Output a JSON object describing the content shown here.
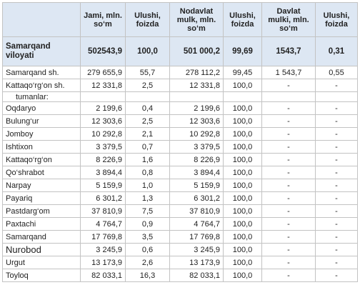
{
  "table": {
    "columns": [
      "Jami, mln. so‘m",
      "Ulushi, foizda",
      "Nodavlat mulk, mln. so‘m",
      "Ulushi, foizda",
      "Davlat mulki, mln. so‘m",
      "Ulushi, foizda"
    ],
    "total": [
      "Samarqand viloyati",
      "502543,9",
      "100,0",
      "501 000,2",
      "99,69",
      "1543,7",
      "0,31"
    ],
    "rows": [
      [
        "Samarqand sh.",
        "279 655,9",
        "55,7",
        "278 112,2",
        "99,45",
        "1 543,7",
        "0,55"
      ],
      [
        "Kattaqo‘rg‘on sh.",
        "12 331,8",
        "2,5",
        "12 331,8",
        "100,0",
        "-",
        "-"
      ],
      [
        "tumanlar:"
      ],
      [
        "Oqdaryo",
        "2 199,6",
        "0,4",
        "2 199,6",
        "100,0",
        "-",
        "-"
      ],
      [
        "Bulung‘ur",
        "12 303,6",
        "2,5",
        "12 303,6",
        "100,0",
        "-",
        "-"
      ],
      [
        "Jomboy",
        "10 292,8",
        "2,1",
        "10 292,8",
        "100,0",
        "-",
        "-"
      ],
      [
        "Ishtixon",
        "3 379,5",
        "0,7",
        "3 379,5",
        "100,0",
        "-",
        "-"
      ],
      [
        "Kattaqo‘rg‘on",
        "8 226,9",
        "1,6",
        "8 226,9",
        "100,0",
        "-",
        "-"
      ],
      [
        "Qo‘shrabot",
        "3 894,4",
        "0,8",
        "3 894,4",
        "100,0",
        "-",
        "-"
      ],
      [
        "Narpay",
        "5 159,9",
        "1,0",
        "5 159,9",
        "100,0",
        "-",
        "-"
      ],
      [
        "Payariq",
        "6 301,2",
        "1,3",
        "6 301,2",
        "100,0",
        "-",
        "-"
      ],
      [
        "Pastdarg‘om",
        "37 810,9",
        "7,5",
        "37 810,9",
        "100,0",
        "-",
        "-"
      ],
      [
        "Paxtachi",
        "4 764,7",
        "0,9",
        "4 764,7",
        "100,0",
        "-",
        "-"
      ],
      [
        "Samarqand",
        "17 769,8",
        "3,5",
        "17 769,8",
        "100,0",
        "-",
        "-"
      ],
      [
        "Nurobod",
        "3 245,9",
        "0,6",
        "3 245,9",
        "100,0",
        "-",
        "-"
      ],
      [
        "Urgut",
        "13 173,9",
        "2,6",
        "13 173,9",
        "100,0",
        "-",
        "-"
      ],
      [
        "Toyloq",
        "82 033,1",
        "16,3",
        "82 033,1",
        "100,0",
        "-",
        "-"
      ]
    ]
  }
}
